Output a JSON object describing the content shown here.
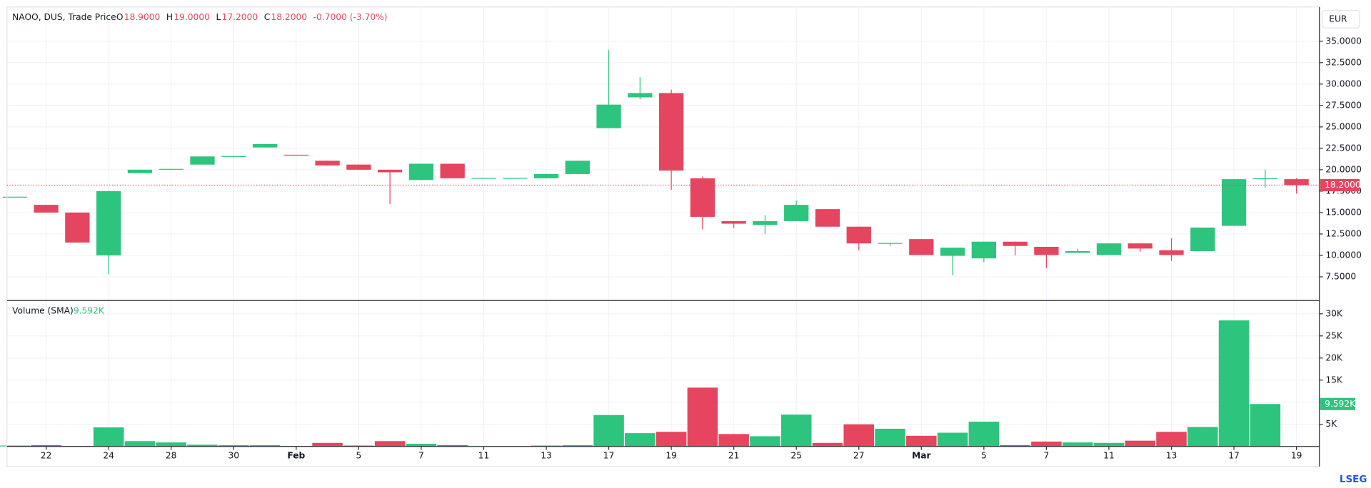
{
  "header": {
    "symbol": "NAOO, DUS, Trade Price",
    "ohlc": [
      {
        "label": "O",
        "value": "18.9000"
      },
      {
        "label": "H",
        "value": "19.0000"
      },
      {
        "label": "L",
        "value": "17.2000"
      },
      {
        "label": "C",
        "value": "18.2000"
      }
    ],
    "change": "-0.7000 (-3.70%)",
    "currency": "EUR",
    "logo": "LSEG"
  },
  "chart_data": [
    {
      "type": "candlestick",
      "up_color": "#2dc47e",
      "down_color": "#e5455f",
      "grid": true,
      "categories": [
        null,
        "22",
        null,
        "24",
        null,
        "28",
        null,
        "30",
        null,
        "Feb",
        null,
        "5",
        null,
        "7",
        null,
        "11",
        null,
        "13",
        null,
        "17",
        null,
        "19",
        null,
        "21",
        null,
        "25",
        null,
        "27",
        null,
        "Mar",
        null,
        "5",
        null,
        "7",
        null,
        "11",
        null,
        "13",
        null,
        "17",
        null,
        "19"
      ],
      "open": [
        16.85,
        15.9,
        15.0,
        10.0,
        19.6,
        20.0,
        20.6,
        21.5,
        22.6,
        21.75,
        21.05,
        20.6,
        20.0,
        18.8,
        20.7,
        19.0,
        19.0,
        19.0,
        19.5,
        24.85,
        28.45,
        28.95,
        19.0,
        14.0,
        13.55,
        14.0,
        15.4,
        13.35,
        11.35,
        11.9,
        9.95,
        9.65,
        11.6,
        11.0,
        10.3,
        10.05,
        11.4,
        10.6,
        10.5,
        13.45,
        18.9,
        18.9
      ],
      "high": [
        16.85,
        15.9,
        15.0,
        17.5,
        20.0,
        20.1,
        21.55,
        21.6,
        23.0,
        21.75,
        21.05,
        20.6,
        20.0,
        20.7,
        20.7,
        19.05,
        19.05,
        19.5,
        21.05,
        34.0,
        30.8,
        29.35,
        19.2,
        14.0,
        14.7,
        16.4,
        15.4,
        13.35,
        11.45,
        11.9,
        10.9,
        11.6,
        11.6,
        11.0,
        10.8,
        11.4,
        11.4,
        12.0,
        13.25,
        18.9,
        20.0,
        19.0
      ],
      "low": [
        16.85,
        15.0,
        11.5,
        7.8,
        19.6,
        20.0,
        20.6,
        21.5,
        22.6,
        21.7,
        20.5,
        20.0,
        16.0,
        18.8,
        19.0,
        19.0,
        19.0,
        19.0,
        19.5,
        24.85,
        28.2,
        17.65,
        13.05,
        13.2,
        12.5,
        14.0,
        13.35,
        10.6,
        11.1,
        10.05,
        7.7,
        9.2,
        10.0,
        8.5,
        10.3,
        10.05,
        10.4,
        9.35,
        10.5,
        13.45,
        17.9,
        17.2
      ],
      "close": [
        16.85,
        15.0,
        11.5,
        17.5,
        20.0,
        20.1,
        21.55,
        21.6,
        23.0,
        21.7,
        20.5,
        20.0,
        19.7,
        20.7,
        19.0,
        19.05,
        19.05,
        19.5,
        21.05,
        27.6,
        28.95,
        19.9,
        14.5,
        13.7,
        14.0,
        15.9,
        13.35,
        11.4,
        11.45,
        10.05,
        10.9,
        11.6,
        11.1,
        10.05,
        10.5,
        11.4,
        10.8,
        10.05,
        13.25,
        18.9,
        19.0,
        18.2
      ],
      "ylim": [
        4.73,
        39.0
      ],
      "yticks": [
        {
          "value": 7.5,
          "label": "7.5000"
        },
        {
          "value": 10,
          "label": "10.0000"
        },
        {
          "value": 12.5,
          "label": "12.5000"
        },
        {
          "value": 15,
          "label": "15.0000"
        },
        {
          "value": 17.5,
          "label": "17.5000"
        },
        {
          "value": 20,
          "label": "20.0000"
        },
        {
          "value": 22.5,
          "label": "22.5000"
        },
        {
          "value": 25,
          "label": "25.0000"
        },
        {
          "value": 27.5,
          "label": "27.5000"
        },
        {
          "value": 30,
          "label": "30.0000"
        },
        {
          "value": 32.5,
          "label": "32.5000"
        },
        {
          "value": 35,
          "label": "35.0000"
        }
      ],
      "last_price": {
        "value": 18.2,
        "label": "18.2000"
      }
    },
    {
      "type": "bar",
      "title": "Volume (SMA)",
      "values": [
        0.2,
        0.3,
        0.1,
        4.3,
        1.2,
        0.9,
        0.4,
        0.3,
        0.3,
        0.1,
        0.8,
        0.2,
        1.2,
        0.6,
        0.3,
        0.05,
        0.05,
        0.2,
        0.3,
        7.1,
        3.0,
        3.3,
        13.3,
        2.8,
        2.3,
        7.2,
        0.8,
        5.0,
        4.0,
        2.4,
        3.1,
        5.6,
        0.3,
        1.1,
        0.9,
        0.8,
        1.3,
        3.3,
        4.4,
        28.5,
        9.592,
        null
      ],
      "ylim": [
        0,
        33
      ],
      "yticks": [
        {
          "value": 5,
          "label": "5K"
        },
        {
          "value": 10,
          "label": "10K"
        },
        {
          "value": 15,
          "label": "15K"
        },
        {
          "value": 20,
          "label": "20K"
        },
        {
          "value": 25,
          "label": "25K"
        },
        {
          "value": 30,
          "label": "30K"
        }
      ],
      "last_value": {
        "value": 9.592,
        "label": "9.592K"
      }
    }
  ]
}
